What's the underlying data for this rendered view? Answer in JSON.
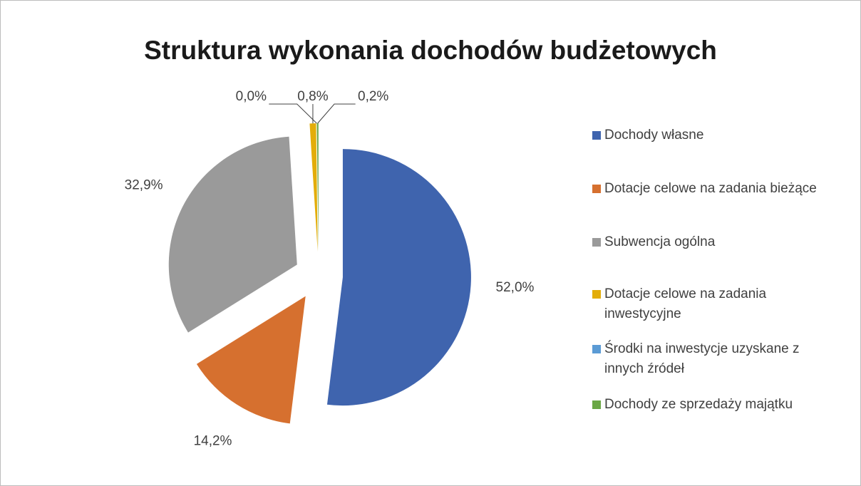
{
  "chart_data": {
    "type": "pie",
    "title": "Struktura wykonania dochodów budżetowych",
    "categories": [
      "Dochody własne",
      "Dotacje celowe na zadania bieżące",
      "Subwencja ogólna",
      "Dotacje celowe na zadania inwestycyjne",
      "Środki na inwestycje uzyskane z innych źródeł",
      "Dochody ze sprzedaży majątku"
    ],
    "values": [
      52.0,
      14.2,
      32.9,
      0.8,
      0.0,
      0.2
    ],
    "value_labels": [
      "52,0%",
      "14,2%",
      "32,9%",
      "0,8%",
      "0,0%",
      "0,2%"
    ],
    "colors": [
      "#3f64ae",
      "#d6702f",
      "#9a9a9a",
      "#e3ad09",
      "#5b9bd5",
      "#6aa745"
    ],
    "legend": "right"
  }
}
